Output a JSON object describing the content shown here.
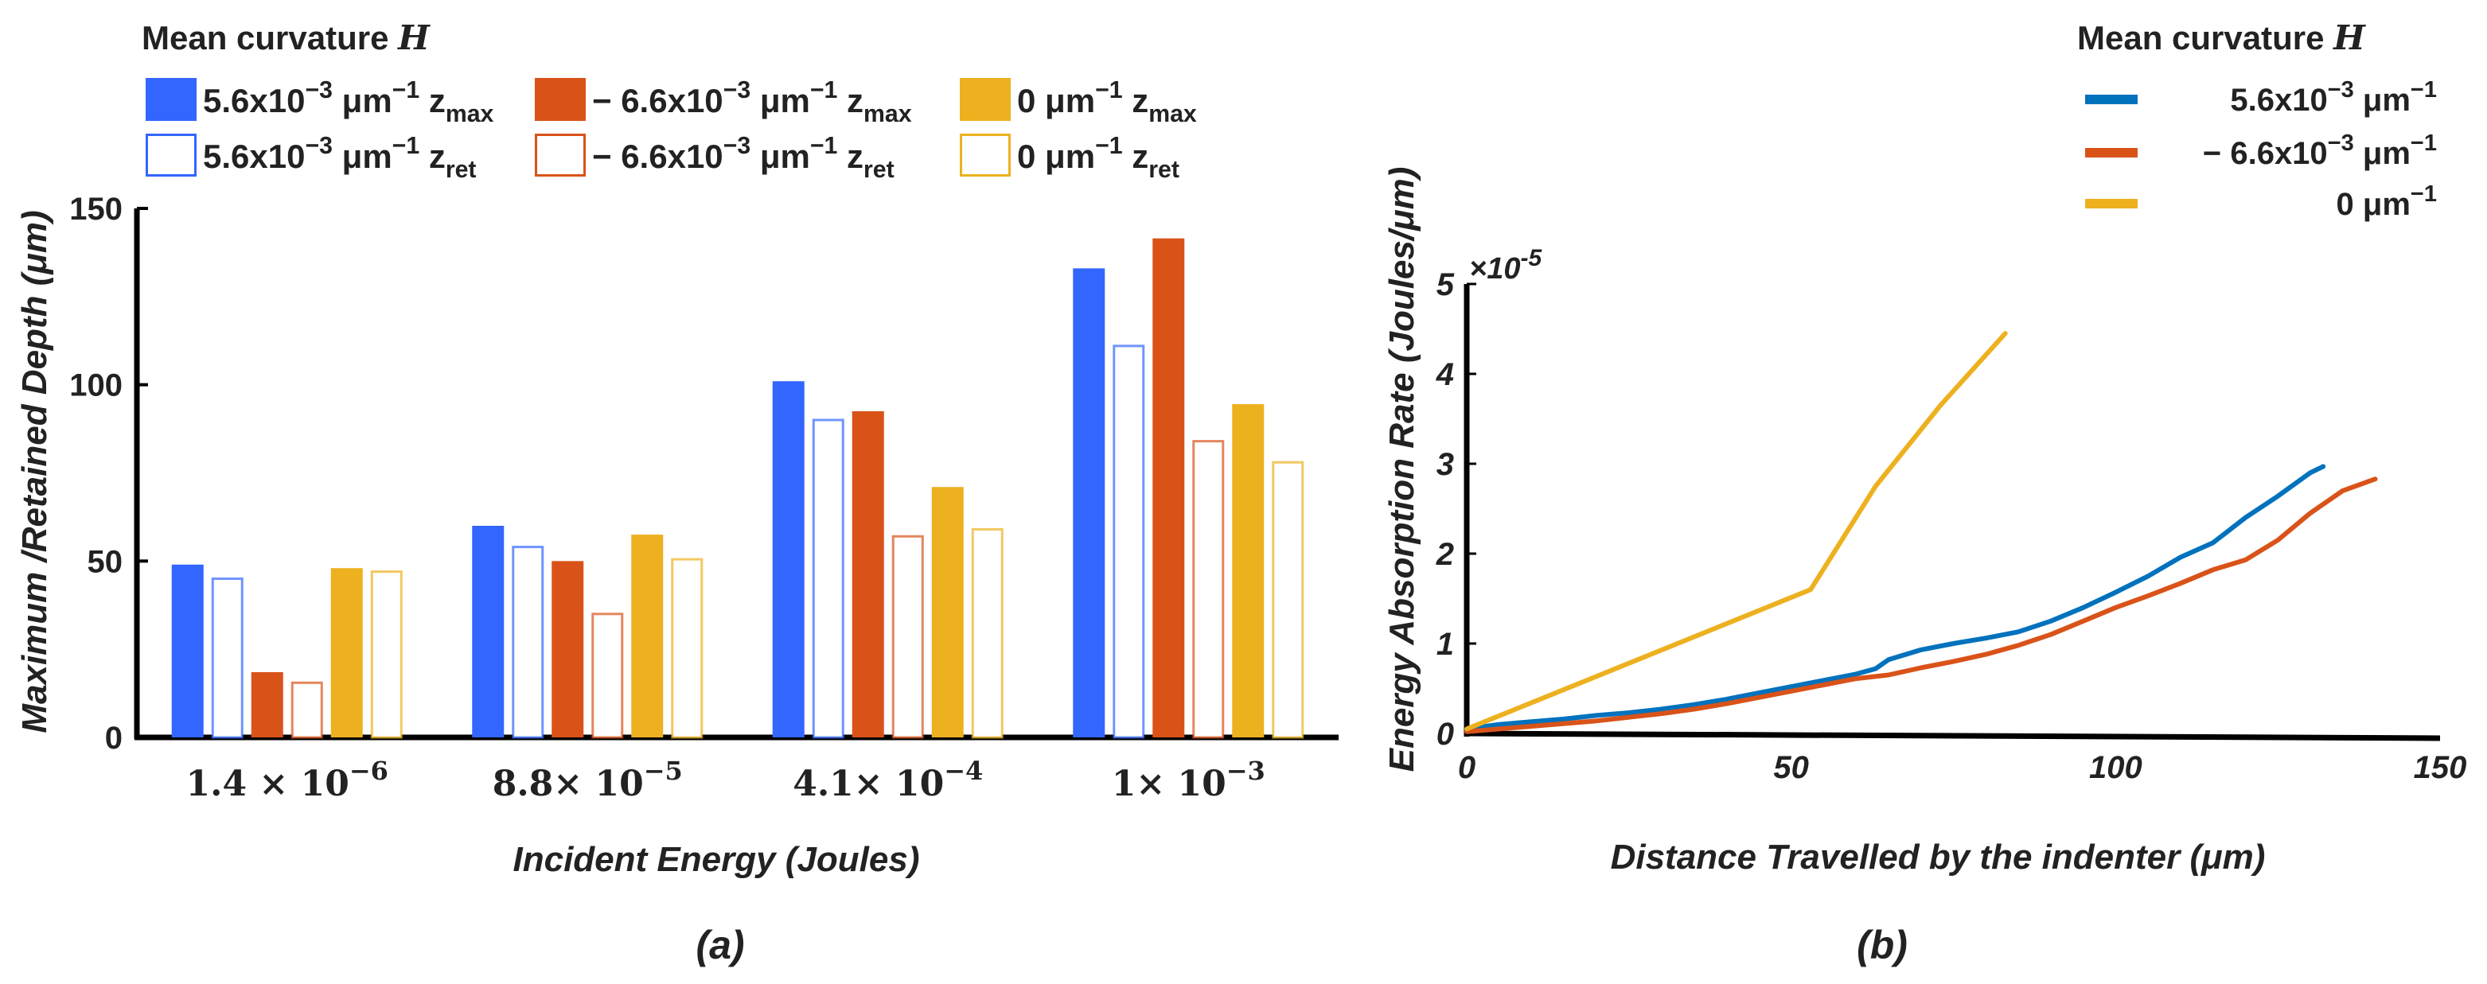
{
  "chart_data": [
    {
      "id": "a",
      "type": "bar",
      "panel_label": "(a)",
      "legend_title_text": "Mean curvature ",
      "legend_title_symbol": "H",
      "xlabel": "Incident Energy (Joules)",
      "ylabel": "Maximum /Retained Depth (μm)",
      "ylim": [
        0,
        150
      ],
      "yticks": [
        "0",
        "50",
        "100",
        "150"
      ],
      "categories": [
        {
          "base": "1.4",
          "mul": " × ",
          "exp_base": "10",
          "exp": "−6"
        },
        {
          "base": "8.8",
          "mul": "× ",
          "exp_base": "10",
          "exp": "−5"
        },
        {
          "base": "4.1",
          "mul": "× ",
          "exp_base": "10",
          "exp": "−4"
        },
        {
          "base": "1",
          "mul": "× ",
          "exp_base": "10",
          "exp": "−3"
        }
      ],
      "series": [
        {
          "name": "5.6x10⁻³ μm⁻¹ z_max",
          "label_main": "5.6x10",
          "label_exp": "−3",
          "label_unit": " μm",
          "label_unit_exp": "−1",
          "label_z": " z",
          "label_sub": "max",
          "color": "#3366ff",
          "style": "filled",
          "values": [
            49,
            60,
            101,
            133
          ]
        },
        {
          "name": "5.6x10⁻³ μm⁻¹ z_ret",
          "label_main": "5.6x10",
          "label_exp": "−3",
          "label_unit": " μm",
          "label_unit_exp": "−1",
          "label_z": " z",
          "label_sub": "ret",
          "color": "#3366ff",
          "style": "hollow",
          "values": [
            45,
            54,
            90,
            111
          ]
        },
        {
          "name": "− 6.6x10⁻³ μm⁻¹ z_max",
          "label_main": "− 6.6x10",
          "label_exp": "−3",
          "label_unit": " μm",
          "label_unit_exp": "−1",
          "label_z": " z",
          "label_sub": "max",
          "color": "#d95319",
          "style": "filled",
          "values": [
            18.5,
            50,
            92.5,
            141.5
          ]
        },
        {
          "name": "− 6.6x10⁻³ μm⁻¹ z_ret",
          "label_main": "− 6.6x10",
          "label_exp": "−3",
          "label_unit": " μm",
          "label_unit_exp": "−1",
          "label_z": " z",
          "label_sub": "ret",
          "color": "#d95319",
          "style": "hollow",
          "values": [
            15.5,
            35,
            57,
            84
          ]
        },
        {
          "name": "0 μm⁻¹ z_max",
          "label_main": "0",
          "label_exp": "",
          "label_unit": " μm",
          "label_unit_exp": "−1",
          "label_z": " z",
          "label_sub": "max",
          "color": "#edb120",
          "style": "filled",
          "values": [
            48,
            57.5,
            71,
            94.5
          ]
        },
        {
          "name": "0 μm⁻¹ z_ret",
          "label_main": "0",
          "label_exp": "",
          "label_unit": " μm",
          "label_unit_exp": "−1",
          "label_z": " z",
          "label_sub": "ret",
          "color": "#edb120",
          "style": "hollow",
          "values": [
            47,
            50.5,
            59,
            78
          ]
        }
      ],
      "legend_order": [
        0,
        2,
        4,
        1,
        3,
        5
      ]
    },
    {
      "id": "b",
      "type": "line",
      "panel_label": "(b)",
      "legend_title_text": "Mean curvature ",
      "legend_title_symbol": "H",
      "xlabel": "Distance Travelled by the indenter (μm)",
      "ylabel": "Energy  Absorption Rate (Joules/μm)",
      "xlim": [
        0,
        150
      ],
      "ylim": [
        0,
        5
      ],
      "xticks": [
        "0",
        "50",
        "100",
        "150"
      ],
      "yticks": [
        "0",
        "1",
        "2",
        "3",
        "4",
        "5"
      ],
      "yscale_prefix": "×10",
      "yscale_exp": "-5",
      "series": [
        {
          "name": "5.6x10⁻³ μm⁻¹",
          "label_main": "5.6x10",
          "label_exp": "−3",
          "label_unit": " μm",
          "label_unit_exp": "−1",
          "color": "#0072bd",
          "x": [
            0,
            5,
            10,
            15,
            20,
            25,
            30,
            35,
            40,
            45,
            50,
            55,
            60,
            63,
            65,
            70,
            75,
            80,
            85,
            90,
            95,
            100,
            105,
            110,
            115,
            120,
            125,
            130,
            132
          ],
          "y": [
            0.05,
            0.1,
            0.13,
            0.16,
            0.2,
            0.23,
            0.27,
            0.32,
            0.38,
            0.45,
            0.52,
            0.59,
            0.66,
            0.72,
            0.82,
            0.93,
            1.0,
            1.06,
            1.13,
            1.25,
            1.4,
            1.57,
            1.75,
            1.96,
            2.12,
            2.4,
            2.64,
            2.9,
            2.97
          ]
        },
        {
          "name": "− 6.6x10⁻³ μm⁻¹",
          "label_main": "− 6.6x10",
          "label_exp": "−3",
          "label_unit": " μm",
          "label_unit_exp": "−1",
          "color": "#d95319",
          "x": [
            0,
            5,
            10,
            15,
            20,
            25,
            30,
            35,
            40,
            45,
            50,
            55,
            60,
            65,
            70,
            75,
            80,
            85,
            90,
            95,
            100,
            105,
            110,
            115,
            120,
            125,
            130,
            135,
            140
          ],
          "y": [
            0.02,
            0.05,
            0.08,
            0.11,
            0.14,
            0.18,
            0.22,
            0.27,
            0.33,
            0.4,
            0.47,
            0.54,
            0.61,
            0.65,
            0.73,
            0.8,
            0.88,
            0.98,
            1.1,
            1.25,
            1.4,
            1.53,
            1.67,
            1.82,
            1.93,
            2.15,
            2.45,
            2.7,
            2.83
          ]
        },
        {
          "name": "0 μm⁻¹",
          "label_main": "0",
          "label_exp": "",
          "label_unit": " μm",
          "label_unit_exp": "−1",
          "color": "#edb120",
          "x": [
            0,
            53,
            63,
            73,
            83
          ],
          "y": [
            0.05,
            1.6,
            2.75,
            3.65,
            4.45
          ]
        }
      ]
    }
  ]
}
